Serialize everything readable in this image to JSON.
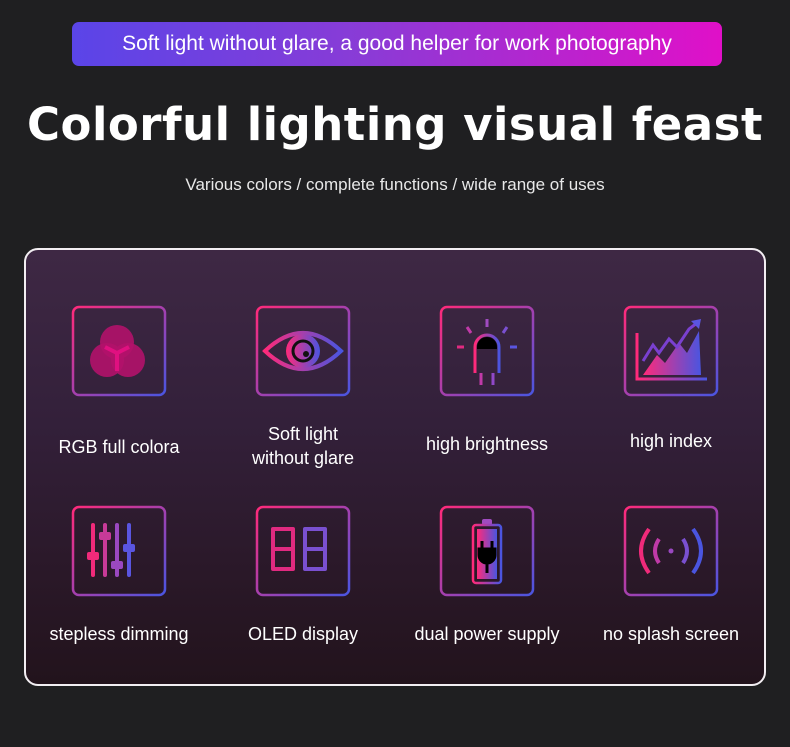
{
  "banner": {
    "text": "Soft light without glare, a good helper for work photography"
  },
  "title": "Colorful lighting visual feast",
  "subtitle": "Various colors / complete functions / wide range of uses",
  "colors": {
    "gradient_start": "#ff2a7a",
    "gradient_end": "#4a55e0",
    "banner_start": "#5a45e8",
    "banner_end": "#e010c8"
  },
  "features": [
    {
      "label": "RGB full colora",
      "icon": "rgb-circles-icon"
    },
    {
      "label": "Soft light without glare",
      "icon": "eye-icon"
    },
    {
      "label": "high brightness",
      "icon": "led-bulb-icon"
    },
    {
      "label": "high index",
      "icon": "rising-chart-icon"
    },
    {
      "label": "stepless dimming",
      "icon": "sliders-icon"
    },
    {
      "label": "OLED display",
      "icon": "seven-segment-display-icon"
    },
    {
      "label": "dual power supply",
      "icon": "battery-plug-icon"
    },
    {
      "label": "no splash screen",
      "icon": "signal-waves-icon"
    }
  ]
}
